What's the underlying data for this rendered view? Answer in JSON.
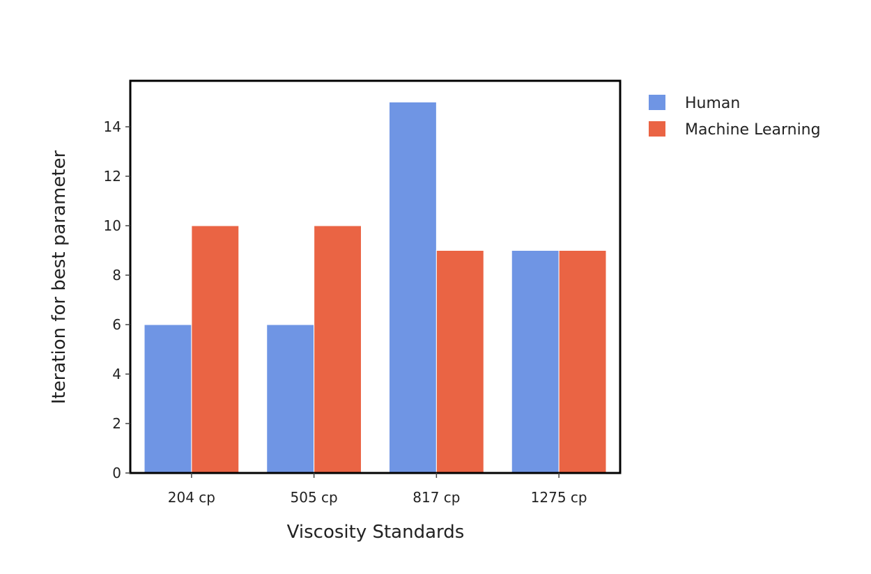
{
  "chart_data": {
    "type": "bar",
    "categories": [
      "204 cp",
      "505 cp",
      "817 cp",
      "1275 cp"
    ],
    "series": [
      {
        "name": "Human",
        "values": [
          6,
          6,
          15,
          9
        ],
        "color": "#6F95E4"
      },
      {
        "name": "Machine Learning",
        "values": [
          10,
          10,
          9,
          9
        ],
        "color": "#EA6444"
      }
    ],
    "xlabel": "Viscosity Standards",
    "ylabel": "Iteration for best parameter",
    "ylim": [
      0,
      15.8
    ],
    "yticks": [
      0,
      2,
      4,
      6,
      8,
      10,
      12,
      14
    ],
    "grid": false,
    "legend_position": "top-right"
  }
}
